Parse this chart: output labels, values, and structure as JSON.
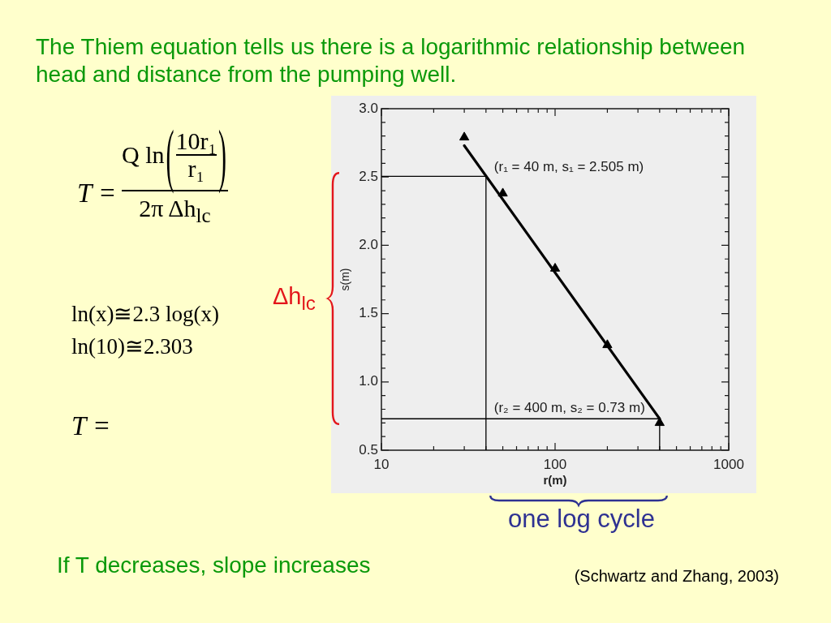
{
  "chart_data": {
    "type": "scatter",
    "title": "The Thiem equation tells us there is a logarithmic relationship between head and distance from the pumping well.",
    "xlabel": "r(m)",
    "ylabel": "s(m)",
    "log": "x",
    "xlim": [
      10,
      1000
    ],
    "xticks": [
      10,
      {
        "value": 20,
        "label": null
      },
      {
        "value": 30,
        "label": null
      },
      {
        "value": 40,
        "label": null
      },
      {
        "value": 50,
        "label": null
      },
      {
        "value": 60,
        "label": null
      },
      {
        "value": 70,
        "label": null
      },
      {
        "value": 80,
        "label": null
      },
      {
        "value": 90,
        "label": null
      },
      100,
      {
        "value": 200,
        "label": null
      },
      {
        "value": 300,
        "label": null
      },
      {
        "value": 400,
        "label": null
      },
      {
        "value": 500,
        "label": null
      },
      {
        "value": 600,
        "label": null
      },
      {
        "value": 700,
        "label": null
      },
      {
        "value": 800,
        "label": null
      },
      {
        "value": 900,
        "label": null
      },
      1000
    ],
    "ylim": [
      0.5,
      3.0
    ],
    "yticks": [
      0.5,
      {
        "value": 0.6,
        "label": null
      },
      {
        "value": 0.7,
        "label": null
      },
      {
        "value": 0.8,
        "label": null
      },
      {
        "value": 0.9,
        "label": null
      },
      {
        "value": 1,
        "label": "1.0"
      },
      {
        "value": 1.1,
        "label": null
      },
      {
        "value": 1.2,
        "label": null
      },
      {
        "value": 1.3,
        "label": null
      },
      {
        "value": 1.4,
        "label": null
      },
      1.5,
      {
        "value": 1.6,
        "label": null
      },
      {
        "value": 1.7,
        "label": null
      },
      {
        "value": 1.8,
        "label": null
      },
      {
        "value": 1.9,
        "label": null
      },
      {
        "value": 2,
        "label": "2.0"
      },
      {
        "value": 2.1,
        "label": null
      },
      {
        "value": 2.2,
        "label": null
      },
      {
        "value": 2.3,
        "label": null
      },
      {
        "value": 2.4,
        "label": null
      },
      2.5,
      {
        "value": 2.6,
        "label": null
      },
      {
        "value": 2.7,
        "label": null
      },
      {
        "value": 2.8,
        "label": null
      },
      {
        "value": 2.9,
        "label": null
      },
      {
        "value": 3,
        "label": "3.0"
      }
    ],
    "series": [
      {
        "color": "#000000",
        "marker": "triangle",
        "x": [
          30,
          50,
          100,
          200,
          400
        ],
        "values": [
          2.79,
          2.38,
          1.83,
          1.27,
          0.7
        ]
      },
      {
        "type": "line",
        "color": "#000000",
        "marker": "none",
        "x": [
          30,
          400
        ],
        "values": [
          2.73,
          0.73
        ]
      },
      {
        "type": "line",
        "color": "#000000",
        "marker": "none",
        "x": [
          10,
          40,
          40
        ],
        "values": [
          2.505,
          2.505,
          0.5
        ]
      },
      {
        "type": "line",
        "color": "#000000",
        "marker": "none",
        "x": [
          10,
          400,
          400
        ],
        "values": [
          0.73,
          0.73,
          0.5
        ]
      }
    ],
    "annotations": [
      {
        "text": "(r₁ = 40 m, s₁ = 2.505 m)",
        "x": 40,
        "y": 2.505
      },
      {
        "text": "(r₂ = 400 m, s₂ = 0.73 m)",
        "x": 400,
        "y": 0.73
      },
      "Δh$_{lc}$",
      "one log cycle",
      "T =",
      "Q ln",
      "(",
      "10r₁",
      "r₁",
      ")",
      "2π Δh$_{lc}$",
      "ln(x)≅2.3 log(x)",
      "ln(10)≅2.303",
      "T =",
      "If T decreases, slope increases",
      "(Schwartz and Zhang, 2003)"
    ]
  }
}
